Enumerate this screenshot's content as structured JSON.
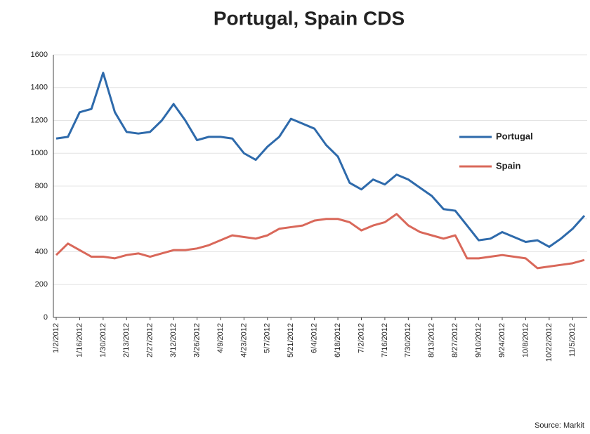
{
  "chart_data": {
    "type": "line",
    "title": "Portugal, Spain CDS",
    "source": "Source: Markit",
    "categories": [
      "1/2/2012",
      null,
      "1/16/2012",
      null,
      "1/30/2012",
      null,
      "2/13/2012",
      null,
      "2/27/2012",
      null,
      "3/12/2012",
      null,
      "3/26/2012",
      null,
      "4/9/2012",
      null,
      "4/23/2012",
      null,
      "5/7/2012",
      null,
      "5/21/2012",
      null,
      "6/4/2012",
      null,
      "6/18/2012",
      null,
      "7/2/2012",
      null,
      "7/16/2012",
      null,
      "7/30/2012",
      null,
      "8/13/2012",
      null,
      "8/27/2012",
      null,
      "9/10/2012",
      null,
      "9/24/2012",
      null,
      "10/8/2012",
      null,
      "10/22/2012",
      null,
      "11/5/2012",
      null
    ],
    "series": [
      {
        "name": "Portugal",
        "color": "#2e6aab",
        "values": [
          1090,
          1100,
          1250,
          1270,
          1490,
          1250,
          1130,
          1120,
          1130,
          1200,
          1300,
          1200,
          1080,
          1100,
          1100,
          1090,
          1000,
          960,
          1040,
          1100,
          1210,
          1180,
          1150,
          1050,
          980,
          820,
          780,
          840,
          810,
          870,
          840,
          790,
          740,
          660,
          650,
          560,
          470,
          480,
          520,
          490,
          460,
          470,
          430,
          480,
          540,
          620
        ]
      },
      {
        "name": "Spain",
        "color": "#d9685a",
        "values": [
          380,
          450,
          410,
          370,
          370,
          360,
          380,
          390,
          370,
          390,
          410,
          410,
          420,
          440,
          470,
          500,
          490,
          480,
          500,
          540,
          550,
          560,
          590,
          600,
          600,
          580,
          530,
          560,
          580,
          630,
          560,
          520,
          500,
          480,
          500,
          360,
          360,
          370,
          380,
          370,
          360,
          300,
          310,
          320,
          330,
          350
        ]
      }
    ],
    "ylim": [
      0,
      1600
    ],
    "yticks": [
      0,
      200,
      400,
      600,
      800,
      1000,
      1200,
      1400,
      1600
    ],
    "grid": true
  }
}
